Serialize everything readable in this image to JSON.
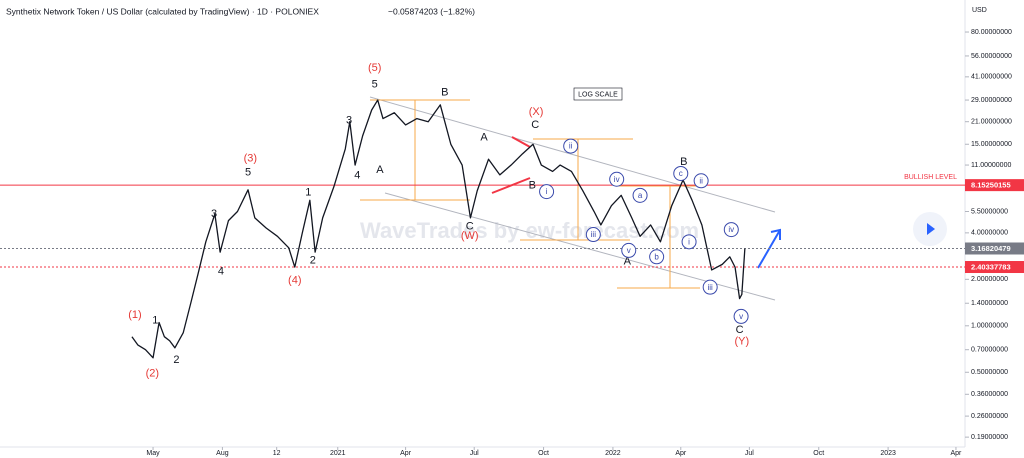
{
  "chart_data": {
    "type": "line",
    "title": "Synthetix Network Token / US Dollar (calculated by TradingView) · 1D · POLONIEX",
    "change": "−0.05874203 (−1.82%)",
    "axis_unit": "USD",
    "scale_note": "LOG SCALE",
    "watermark": "WaveTrades by ew-forecast.com",
    "log_scale": true,
    "x": [
      -28,
      -20,
      -10,
      0,
      8,
      15,
      22,
      29,
      40,
      50,
      60,
      70,
      82,
      89,
      100,
      112,
      126,
      135,
      150,
      165,
      180,
      188,
      198,
      208,
      215,
      225,
      240,
      255,
      261,
      268,
      278,
      290,
      298,
      305,
      320,
      335,
      350,
      365,
      381,
      395,
      410,
      421,
      430,
      445,
      460,
      475,
      490,
      504,
      515,
      530,
      540,
      555,
      570,
      585,
      594,
      608,
      621,
      635,
      646,
      660,
      673,
      688,
      703,
      715,
      728,
      741,
      755,
      765,
      772,
      778,
      781,
      785
    ],
    "series": [
      {
        "name": "SNXUSD",
        "color": "#131722",
        "values": [
          0.85,
          0.75,
          0.7,
          0.62,
          1.05,
          0.85,
          0.8,
          0.72,
          0.9,
          1.4,
          2.2,
          3.5,
          5.3,
          3.0,
          4.8,
          5.5,
          7.6,
          5.0,
          4.3,
          3.8,
          3.2,
          2.4,
          4.0,
          6.5,
          3.0,
          5.0,
          8.0,
          14,
          21,
          11,
          17,
          25,
          29,
          22,
          24,
          20,
          22,
          21,
          27,
          15,
          11,
          5.0,
          7.5,
          12,
          9.5,
          11,
          13,
          15,
          11,
          10,
          11,
          10,
          7.5,
          5.5,
          4.5,
          6.0,
          7.0,
          5.0,
          3.8,
          4.5,
          3.5,
          6.0,
          8.8,
          6.5,
          4.5,
          2.3,
          2.5,
          2.8,
          2.4,
          1.5,
          1.6,
          3.16820479
        ]
      }
    ],
    "xlim": [
      -203,
      1077
    ],
    "xticks": [
      {
        "value": 0,
        "label": "May"
      },
      {
        "value": 92,
        "label": "Aug"
      },
      {
        "value": 164,
        "label": "12"
      },
      {
        "value": 245,
        "label": "2021"
      },
      {
        "value": 335,
        "label": "Apr"
      },
      {
        "value": 426,
        "label": "Jul"
      },
      {
        "value": 518,
        "label": "Oct"
      },
      {
        "value": 610,
        "label": "2022"
      },
      {
        "value": 700,
        "label": "Apr"
      },
      {
        "value": 791,
        "label": "Jul"
      },
      {
        "value": 883,
        "label": "Oct"
      },
      {
        "value": 975,
        "label": "2023"
      },
      {
        "value": 1065,
        "label": "Apr"
      }
    ],
    "ylim": [
      0.164,
      129
    ],
    "yticks": [
      {
        "value": 80,
        "label": "80.00000000"
      },
      {
        "value": 56,
        "label": "56.00000000"
      },
      {
        "value": 41,
        "label": "41.00000000"
      },
      {
        "value": 29,
        "label": "29.00000000"
      },
      {
        "value": 21,
        "label": "21.00000000"
      },
      {
        "value": 15,
        "label": "15.00000000"
      },
      {
        "value": 11,
        "label": "11.00000000"
      },
      {
        "value": 5.5,
        "label": "5.50000000"
      },
      {
        "value": 4,
        "label": "4.00000000"
      },
      {
        "value": 2,
        "label": "2.00000000"
      },
      {
        "value": 1.4,
        "label": "1.40000000"
      },
      {
        "value": 1,
        "label": "1.00000000"
      },
      {
        "value": 0.7,
        "label": "0.70000000"
      },
      {
        "value": 0.5,
        "label": "0.50000000"
      },
      {
        "value": 0.36,
        "label": "0.36000000"
      },
      {
        "value": 0.26,
        "label": "0.26000000"
      },
      {
        "value": 0.19,
        "label": "0.19000000"
      }
    ],
    "levels": [
      {
        "value": 8.15250155,
        "name": "BULLISH LEVEL",
        "color": "#f23645",
        "dash": false
      },
      {
        "value": 3.16820479,
        "color": "#787b86",
        "dash": true
      },
      {
        "value": 2.40337783,
        "color": "#f23645",
        "dash": true
      }
    ],
    "annotations": [
      {
        "text": "(1)",
        "x": -24,
        "y": 1.17,
        "color": "#e53935"
      },
      {
        "text": "(2)",
        "x": -1,
        "y": 0.49,
        "color": "#e53935"
      },
      {
        "text": "(3)",
        "x": 129,
        "y": 12.1,
        "color": "#e53935"
      },
      {
        "text": "(4)",
        "x": 188,
        "y": 1.97,
        "color": "#e53935"
      },
      {
        "text": "(5)",
        "x": 294,
        "y": 46.7,
        "color": "#e53935"
      },
      {
        "text": "(X)",
        "x": 508,
        "y": 24.2,
        "color": "#e53935"
      },
      {
        "text": "(W)",
        "x": 420,
        "y": 3.8,
        "color": "#e53935"
      },
      {
        "text": "(Y)",
        "x": 781,
        "y": 0.79,
        "color": "#e53935"
      },
      {
        "text": "1",
        "x": 3,
        "y": 1.08,
        "color": "#131722"
      },
      {
        "text": "2",
        "x": 31,
        "y": 0.6,
        "color": "#131722"
      },
      {
        "text": "3",
        "x": 81,
        "y": 5.3,
        "color": "#131722"
      },
      {
        "text": "4",
        "x": 90,
        "y": 2.24,
        "color": "#131722"
      },
      {
        "text": "5",
        "x": 126,
        "y": 9.8,
        "color": "#131722"
      },
      {
        "text": "1",
        "x": 206,
        "y": 7.3,
        "color": "#131722"
      },
      {
        "text": "2",
        "x": 212,
        "y": 2.65,
        "color": "#131722"
      },
      {
        "text": "3",
        "x": 260,
        "y": 21.3,
        "color": "#131722"
      },
      {
        "text": "4",
        "x": 271,
        "y": 9.4,
        "color": "#131722"
      },
      {
        "text": "5",
        "x": 294,
        "y": 36.6,
        "color": "#131722"
      },
      {
        "text": "A",
        "x": 301,
        "y": 10.2,
        "color": "#131722"
      },
      {
        "text": "B",
        "x": 387,
        "y": 32.5,
        "color": "#131722"
      },
      {
        "text": "C",
        "x": 420,
        "y": 4.4,
        "color": "#131722"
      },
      {
        "text": "A",
        "x": 439,
        "y": 16.6,
        "color": "#131722"
      },
      {
        "text": "B",
        "x": 503,
        "y": 8.1,
        "color": "#131722"
      },
      {
        "text": "C",
        "x": 507,
        "y": 19.9,
        "color": "#131722"
      },
      {
        "text": "B",
        "x": 704,
        "y": 11.5,
        "color": "#131722"
      },
      {
        "text": "A",
        "x": 629,
        "y": 2.6,
        "color": "#131722"
      },
      {
        "text": "C",
        "x": 778,
        "y": 0.94,
        "color": "#131722"
      }
    ],
    "circled_labels": [
      {
        "text": "i",
        "x": 522,
        "y": 7.4
      },
      {
        "text": "ii",
        "x": 554,
        "y": 14.6
      },
      {
        "text": "iii",
        "x": 584,
        "y": 3.9
      },
      {
        "text": "iv",
        "x": 615,
        "y": 8.9
      },
      {
        "text": "v",
        "x": 631,
        "y": 3.08
      },
      {
        "text": "a",
        "x": 646,
        "y": 7.0
      },
      {
        "text": "b",
        "x": 668,
        "y": 2.8
      },
      {
        "text": "c",
        "x": 700,
        "y": 9.7
      },
      {
        "text": "ii",
        "x": 727,
        "y": 8.7
      },
      {
        "text": "i",
        "x": 711,
        "y": 3.5
      },
      {
        "text": "iii",
        "x": 739,
        "y": 1.78
      },
      {
        "text": "iv",
        "x": 767,
        "y": 4.2
      },
      {
        "text": "v",
        "x": 780,
        "y": 1.15
      }
    ]
  }
}
